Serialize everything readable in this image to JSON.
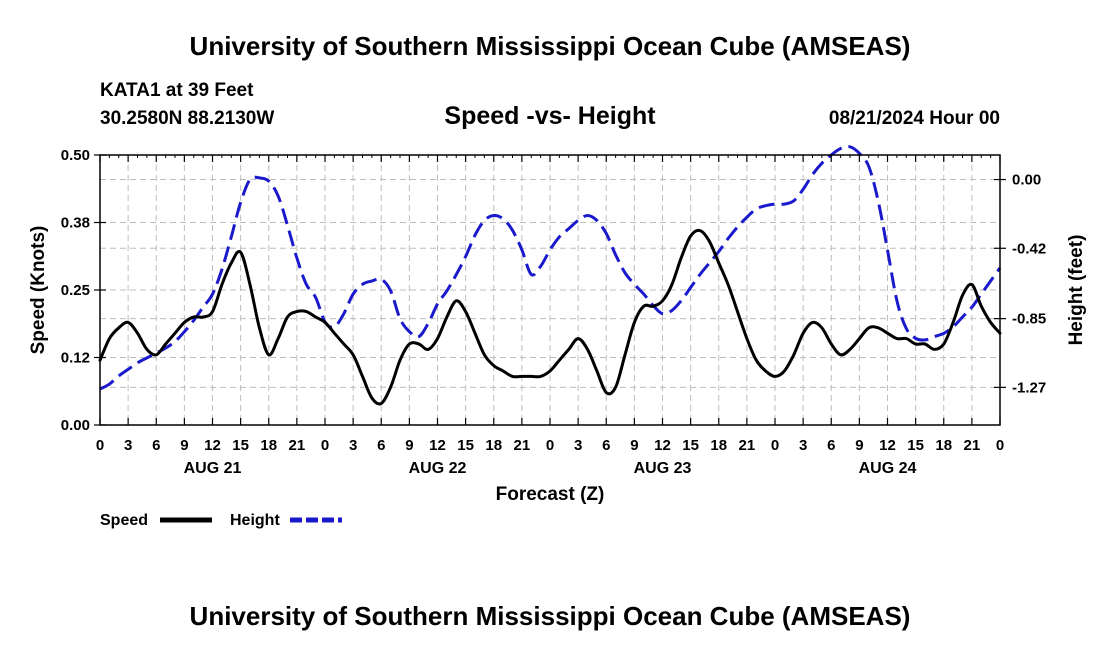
{
  "header": {
    "title": "University of Southern Mississippi Ocean Cube (AMSEAS)",
    "station": "KATA1 at 39 Feet",
    "coords": "30.2580N  88.2130W",
    "chart_title": "Speed -vs- Height",
    "datetime": "08/21/2024 Hour 00"
  },
  "footer": {
    "title": "University of Southern Mississippi Ocean Cube (AMSEAS)"
  },
  "chart_data": {
    "type": "line",
    "title": "Speed -vs- Height",
    "xlabel": "Forecast (Z)",
    "ylabel": "Speed (Knots)",
    "y2label": "Height (feet)",
    "xlim": [
      0,
      96
    ],
    "ylim": [
      0,
      0.5
    ],
    "y2lim": [
      -1.5,
      0.15
    ],
    "x_ticks": [
      0,
      3,
      6,
      9,
      12,
      15,
      18,
      21,
      24,
      27,
      30,
      33,
      36,
      39,
      42,
      45,
      48,
      51,
      54,
      57,
      60,
      63,
      66,
      69,
      72,
      75,
      78,
      81,
      84,
      87,
      90,
      93,
      96
    ],
    "x_tick_labels": [
      "0",
      "3",
      "6",
      "9",
      "12",
      "15",
      "18",
      "21",
      "0",
      "3",
      "6",
      "9",
      "12",
      "15",
      "18",
      "21",
      "0",
      "3",
      "6",
      "9",
      "12",
      "15",
      "18",
      "21",
      "0",
      "3",
      "6",
      "9",
      "12",
      "15",
      "18",
      "21",
      "0"
    ],
    "day_labels": [
      {
        "x": 12,
        "label": "AUG 21"
      },
      {
        "x": 36,
        "label": "AUG 22"
      },
      {
        "x": 60,
        "label": "AUG 23"
      },
      {
        "x": 84,
        "label": "AUG 24"
      }
    ],
    "y_ticks": [
      0,
      0.125,
      0.25,
      0.375,
      0.5
    ],
    "y_tick_labels": [
      "0.00",
      "0.12",
      "0.25",
      "0.38",
      "0.50"
    ],
    "y2_ticks": [
      0,
      -0.42,
      -0.85,
      -1.27
    ],
    "y2_tick_labels": [
      "0.00",
      "-0.42",
      "-0.85",
      "-1.27"
    ],
    "legend": [
      {
        "name": "Speed",
        "color": "#000000",
        "dash": "solid"
      },
      {
        "name": "Height",
        "color": "#1a1acc",
        "dash": "dashed"
      }
    ],
    "series": [
      {
        "name": "Speed",
        "axis": "left",
        "color": "#000000",
        "x": [
          0,
          1,
          2,
          3,
          4,
          5,
          6,
          7,
          8,
          9,
          10,
          11,
          12,
          13,
          14,
          15,
          16,
          17,
          18,
          19,
          20,
          21,
          22,
          23,
          24,
          25,
          26,
          27,
          28,
          29,
          30,
          31,
          32,
          33,
          34,
          35,
          36,
          37,
          38,
          39,
          40,
          41,
          42,
          43,
          44,
          45,
          46,
          47,
          48,
          49,
          50,
          51,
          52,
          53,
          54,
          55,
          56,
          57,
          58,
          59,
          60,
          61,
          62,
          63,
          64,
          65,
          66,
          67,
          68,
          69,
          70,
          71,
          72,
          73,
          74,
          75,
          76,
          77,
          78,
          79,
          80,
          81,
          82,
          83,
          84,
          85,
          86,
          87,
          88,
          89,
          90,
          91,
          92,
          93,
          94,
          95,
          96
        ],
        "values": [
          0.12,
          0.16,
          0.18,
          0.19,
          0.17,
          0.14,
          0.13,
          0.15,
          0.17,
          0.19,
          0.2,
          0.2,
          0.21,
          0.26,
          0.3,
          0.32,
          0.26,
          0.18,
          0.13,
          0.16,
          0.2,
          0.21,
          0.21,
          0.2,
          0.19,
          0.17,
          0.15,
          0.13,
          0.09,
          0.05,
          0.04,
          0.07,
          0.12,
          0.15,
          0.15,
          0.14,
          0.16,
          0.2,
          0.23,
          0.21,
          0.17,
          0.13,
          0.11,
          0.1,
          0.09,
          0.09,
          0.09,
          0.09,
          0.1,
          0.12,
          0.14,
          0.16,
          0.14,
          0.1,
          0.06,
          0.07,
          0.13,
          0.19,
          0.22,
          0.22,
          0.23,
          0.26,
          0.31,
          0.35,
          0.36,
          0.34,
          0.3,
          0.26,
          0.21,
          0.16,
          0.12,
          0.1,
          0.09,
          0.1,
          0.13,
          0.17,
          0.19,
          0.18,
          0.15,
          0.13,
          0.14,
          0.16,
          0.18,
          0.18,
          0.17,
          0.16,
          0.16,
          0.15,
          0.15,
          0.14,
          0.15,
          0.19,
          0.24,
          0.26,
          0.22,
          0.19,
          0.17
        ]
      },
      {
        "name": "Height",
        "axis": "right",
        "color": "#1a1acc",
        "x": [
          0,
          1,
          2,
          3,
          4,
          5,
          6,
          7,
          8,
          9,
          10,
          11,
          12,
          13,
          14,
          15,
          16,
          17,
          18,
          19,
          20,
          21,
          22,
          23,
          24,
          25,
          26,
          27,
          28,
          29,
          30,
          31,
          32,
          33,
          34,
          35,
          36,
          37,
          38,
          39,
          40,
          41,
          42,
          43,
          44,
          45,
          46,
          47,
          48,
          49,
          50,
          51,
          52,
          53,
          54,
          55,
          56,
          57,
          58,
          59,
          60,
          61,
          62,
          63,
          64,
          65,
          66,
          67,
          68,
          69,
          70,
          71,
          72,
          73,
          74,
          75,
          76,
          77,
          78,
          79,
          80,
          81,
          82,
          83,
          84,
          85,
          86,
          87,
          88,
          89,
          90,
          91,
          92,
          93,
          94,
          95,
          96
        ],
        "values": [
          -1.28,
          -1.25,
          -1.2,
          -1.16,
          -1.12,
          -1.09,
          -1.06,
          -1.03,
          -0.99,
          -0.93,
          -0.86,
          -0.78,
          -0.7,
          -0.55,
          -0.35,
          -0.14,
          0.0,
          0.01,
          -0.01,
          -0.1,
          -0.28,
          -0.48,
          -0.64,
          -0.72,
          -0.87,
          -0.9,
          -0.82,
          -0.7,
          -0.64,
          -0.62,
          -0.61,
          -0.68,
          -0.85,
          -0.93,
          -0.96,
          -0.88,
          -0.76,
          -0.68,
          -0.58,
          -0.47,
          -0.34,
          -0.25,
          -0.22,
          -0.24,
          -0.31,
          -0.43,
          -0.58,
          -0.53,
          -0.43,
          -0.35,
          -0.3,
          -0.25,
          -0.22,
          -0.25,
          -0.33,
          -0.46,
          -0.57,
          -0.64,
          -0.7,
          -0.77,
          -0.82,
          -0.8,
          -0.74,
          -0.66,
          -0.58,
          -0.51,
          -0.44,
          -0.36,
          -0.29,
          -0.23,
          -0.18,
          -0.16,
          -0.15,
          -0.15,
          -0.13,
          -0.06,
          0.03,
          0.1,
          0.15,
          0.19,
          0.2,
          0.16,
          0.08,
          -0.13,
          -0.43,
          -0.74,
          -0.91,
          -0.97,
          -0.98,
          -0.96,
          -0.94,
          -0.9,
          -0.84,
          -0.78,
          -0.7,
          -0.62,
          -0.54
        ]
      }
    ]
  }
}
